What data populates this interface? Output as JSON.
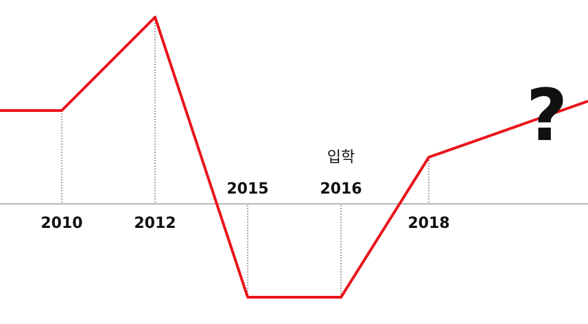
{
  "chart_data": {
    "type": "line",
    "title": "",
    "xlabel": "",
    "ylabel": "",
    "grid": false,
    "series": [
      {
        "color": "#e8141b",
        "points": [
          {
            "x": 2009.0,
            "y": 2.0
          },
          {
            "x": 2010,
            "y": 2.0
          },
          {
            "x": 2012,
            "y": 4.0
          },
          {
            "x": 2015,
            "y": -2.0
          },
          {
            "x": 2016,
            "y": -2.0
          },
          {
            "x": 2018,
            "y": 1.0
          },
          {
            "x": 2019.7,
            "y": 2.2
          }
        ]
      }
    ],
    "marked_years": [
      {
        "year": 2010,
        "label": "2010",
        "label_side": "below"
      },
      {
        "year": 2012,
        "label": "2012",
        "label_side": "below"
      },
      {
        "year": 2015,
        "label": "2015",
        "label_side": "above"
      },
      {
        "year": 2016,
        "label": "2016",
        "label_side": "above",
        "note": "입학"
      },
      {
        "year": 2018,
        "label": "2018",
        "label_side": "below"
      }
    ],
    "annotation": "?",
    "colors": {
      "line": "#e8141b",
      "baseline": "#b8b8b8",
      "guide": "#8a8a8a",
      "text": "#111111"
    }
  }
}
